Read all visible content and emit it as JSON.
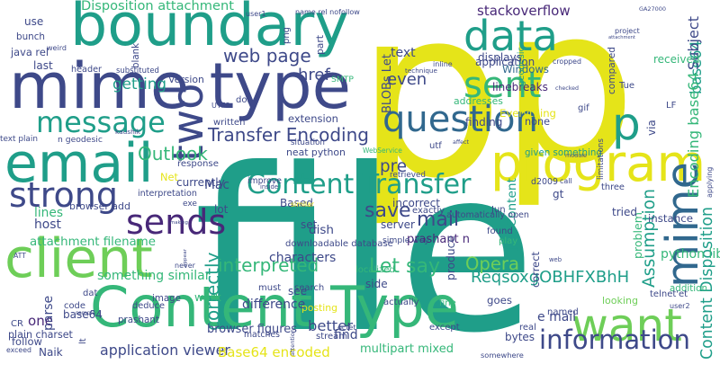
{
  "palette": {
    "background": "#ffffff",
    "yellow": "#e5e419",
    "lightgreen": "#6ece58",
    "green": "#35b779",
    "teal": "#1f9e89",
    "tealblue": "#26828e",
    "blue": "#31688e",
    "indigo": "#3e4989",
    "purple": "#482878",
    "darkpurple": "#440154"
  },
  "words": [
    {
      "text": "p",
      "color": "yellow"
    },
    {
      "text": "p",
      "color": "yellow"
    },
    {
      "text": "file",
      "color": "teal"
    },
    {
      "text": "mime type",
      "color": "indigo"
    },
    {
      "text": "boundary",
      "color": "teal"
    },
    {
      "text": "Content Type",
      "color": "green"
    },
    {
      "text": "email",
      "color": "teal"
    },
    {
      "text": "data",
      "color": "teal"
    },
    {
      "text": "client",
      "color": "lightgreen"
    },
    {
      "text": "program",
      "color": "yellow"
    },
    {
      "text": "question",
      "color": "blue"
    },
    {
      "text": "want",
      "color": "lightgreen"
    },
    {
      "text": "mime",
      "color": "blue"
    },
    {
      "text": "two",
      "color": "indigo"
    },
    {
      "text": "sent",
      "color": "green"
    },
    {
      "text": "message",
      "color": "teal"
    },
    {
      "text": "sends",
      "color": "purple"
    },
    {
      "text": "strong",
      "color": "indigo"
    },
    {
      "text": "Content Transfer",
      "color": "teal"
    },
    {
      "text": "information",
      "color": "indigo"
    },
    {
      "text": "p",
      "color": "teal"
    },
    {
      "text": "Transfer Encoding",
      "color": "indigo"
    },
    {
      "text": "Outlook",
      "color": "green"
    },
    {
      "text": "base64",
      "color": "teal"
    },
    {
      "text": "Encoding base64",
      "color": "green"
    },
    {
      "text": "Content Disposition",
      "color": "teal"
    },
    {
      "text": "interpreted",
      "color": "green"
    },
    {
      "text": "Let say",
      "color": "green"
    },
    {
      "text": "Opera",
      "color": "lightgreen"
    },
    {
      "text": "save",
      "color": "indigo"
    },
    {
      "text": "mail",
      "color": "indigo"
    },
    {
      "text": "correctly",
      "color": "teal"
    },
    {
      "text": "Assumption",
      "color": "teal"
    },
    {
      "text": "web page",
      "color": "indigo"
    },
    {
      "text": "getting",
      "color": "teal"
    },
    {
      "text": "Disposition attachment",
      "color": "green"
    },
    {
      "text": "stackoverflow",
      "color": "purple"
    },
    {
      "text": "even",
      "color": "indigo"
    },
    {
      "text": "attachment filename",
      "color": "green"
    },
    {
      "text": "jpg Content",
      "color": "teal"
    },
    {
      "text": "pre",
      "color": "indigo"
    },
    {
      "text": "href",
      "color": "indigo"
    },
    {
      "text": "Version",
      "color": "indigo"
    },
    {
      "text": "one",
      "color": "purple"
    },
    {
      "text": "better",
      "color": "indigo"
    },
    {
      "text": "application viewer",
      "color": "indigo"
    },
    {
      "text": "Base64 encoded",
      "color": "yellow"
    },
    {
      "text": "ReqsoxgOBHFXBhH",
      "color": "teal"
    },
    {
      "text": "python library",
      "color": "green"
    },
    {
      "text": "e mail",
      "color": "indigo"
    },
    {
      "text": "prashant n",
      "color": "purple"
    },
    {
      "text": "Subject",
      "color": "indigo"
    },
    {
      "text": "dish",
      "color": "indigo"
    },
    {
      "text": "downloadable database",
      "color": "indigo"
    },
    {
      "text": "characters",
      "color": "indigo"
    },
    {
      "text": "something similar",
      "color": "green"
    },
    {
      "text": "browser figures",
      "color": "indigo"
    },
    {
      "text": "multipart mixed",
      "color": "green"
    },
    {
      "text": "text",
      "color": "indigo"
    },
    {
      "text": "Windows",
      "color": "blue"
    },
    {
      "text": "linebreaks",
      "color": "purple"
    },
    {
      "text": "application",
      "color": "indigo"
    },
    {
      "text": "geodesic",
      "color": "teal"
    },
    {
      "text": "Everything",
      "color": "yellow"
    },
    {
      "text": "finding",
      "color": "indigo"
    },
    {
      "text": "addresses",
      "color": "green"
    },
    {
      "text": "compared",
      "color": "indigo"
    },
    {
      "text": "received",
      "color": "green"
    },
    {
      "text": "BLOBs Let",
      "color": "indigo"
    },
    {
      "text": "displays",
      "color": "indigo"
    },
    {
      "text": "extension",
      "color": "indigo"
    },
    {
      "text": "SMTP",
      "color": "green"
    },
    {
      "text": "name rel nofollow",
      "color": "indigo"
    },
    {
      "text": "lines",
      "color": "green"
    },
    {
      "text": "host",
      "color": "indigo"
    },
    {
      "text": "neat python",
      "color": "indigo"
    },
    {
      "text": "given something",
      "color": "teal"
    },
    {
      "text": "text plain",
      "color": "indigo"
    },
    {
      "text": "n geodesic",
      "color": "indigo"
    },
    {
      "text": "browser add",
      "color": "indigo"
    },
    {
      "text": "response",
      "color": "indigo"
    },
    {
      "text": "currently",
      "color": "indigo"
    },
    {
      "text": "interpretation",
      "color": "indigo"
    },
    {
      "text": "incorrect",
      "color": "indigo"
    },
    {
      "text": "automatically open",
      "color": "indigo"
    },
    {
      "text": "server",
      "color": "indigo"
    },
    {
      "text": "simple way",
      "color": "indigo"
    },
    {
      "text": "produce",
      "color": "indigo"
    },
    {
      "text": "posting",
      "color": "yellow"
    },
    {
      "text": "difference",
      "color": "indigo"
    },
    {
      "text": "image",
      "color": "indigo"
    },
    {
      "text": "work",
      "color": "green"
    },
    {
      "text": "prashant",
      "color": "indigo"
    },
    {
      "text": "base64",
      "color": "indigo"
    },
    {
      "text": "plain charset",
      "color": "indigo"
    },
    {
      "text": "follow",
      "color": "indigo"
    },
    {
      "text": "Naik",
      "color": "indigo"
    },
    {
      "text": "parse",
      "color": "indigo"
    },
    {
      "text": "goes",
      "color": "indigo"
    },
    {
      "text": "find",
      "color": "indigo"
    },
    {
      "text": "bytes",
      "color": "indigo"
    },
    {
      "text": "somewhere",
      "color": "indigo"
    },
    {
      "text": "looking",
      "color": "lightgreen"
    },
    {
      "text": "problem",
      "color": "green"
    },
    {
      "text": "instance",
      "color": "indigo"
    },
    {
      "text": "tried",
      "color": "indigo"
    },
    {
      "text": "addition",
      "color": "green"
    },
    {
      "text": "Tue",
      "color": "indigo"
    },
    {
      "text": "via",
      "color": "indigo"
    },
    {
      "text": "use",
      "color": "indigo"
    },
    {
      "text": "bunch",
      "color": "indigo"
    },
    {
      "text": "java rel",
      "color": "indigo"
    },
    {
      "text": "header",
      "color": "indigo"
    },
    {
      "text": "last",
      "color": "indigo"
    },
    {
      "text": "Mac",
      "color": "indigo"
    },
    {
      "text": "Net",
      "color": "yellow"
    },
    {
      "text": "lot",
      "color": "indigo"
    },
    {
      "text": "Based",
      "color": "indigo"
    },
    {
      "text": "set",
      "color": "indigo"
    },
    {
      "text": "see",
      "color": "indigo"
    },
    {
      "text": "side",
      "color": "indigo"
    },
    {
      "text": "exactly",
      "color": "indigo"
    },
    {
      "text": "none",
      "color": "indigo"
    },
    {
      "text": "utf",
      "color": "indigo"
    },
    {
      "text": "affect",
      "color": "indigo"
    },
    {
      "text": "gt",
      "color": "indigo"
    },
    {
      "text": "gif",
      "color": "indigo"
    },
    {
      "text": "Jun",
      "color": "indigo"
    },
    {
      "text": "found",
      "color": "indigo"
    },
    {
      "text": "correct",
      "color": "indigo"
    },
    {
      "text": "fine",
      "color": "green"
    },
    {
      "text": "play",
      "color": "green"
    },
    {
      "text": "except",
      "color": "indigo"
    },
    {
      "text": "actually",
      "color": "indigo"
    },
    {
      "text": "localized",
      "color": "green"
    },
    {
      "text": "telnet'et",
      "color": "indigo"
    },
    {
      "text": "real",
      "color": "indigo"
    },
    {
      "text": "named",
      "color": "indigo"
    },
    {
      "text": "matches",
      "color": "indigo"
    },
    {
      "text": "stream",
      "color": "indigo"
    },
    {
      "text": "code",
      "color": "indigo"
    },
    {
      "text": "deduce",
      "color": "indigo"
    },
    {
      "text": "written",
      "color": "indigo"
    },
    {
      "text": "done",
      "color": "indigo"
    },
    {
      "text": "improve",
      "color": "indigo"
    },
    {
      "text": "search",
      "color": "indigo"
    },
    {
      "text": "must",
      "color": "indigo"
    },
    {
      "text": "substituted",
      "color": "indigo"
    },
    {
      "text": "blank",
      "color": "indigo"
    },
    {
      "text": "part",
      "color": "indigo"
    },
    {
      "text": "png",
      "color": "indigo"
    },
    {
      "text": "inline",
      "color": "indigo"
    },
    {
      "text": "CR",
      "color": "indigo"
    },
    {
      "text": "LF",
      "color": "indigo"
    },
    {
      "text": "exe",
      "color": "indigo"
    },
    {
      "text": "dat",
      "color": "indigo"
    },
    {
      "text": "exceed",
      "color": "indigo"
    },
    {
      "text": "WebService",
      "color": "green"
    },
    {
      "text": "d2009",
      "color": "indigo"
    },
    {
      "text": "three",
      "color": "indigo"
    },
    {
      "text": "situation",
      "color": "indigo"
    },
    {
      "text": "retrieved",
      "color": "indigo"
    },
    {
      "text": "user1",
      "color": "indigo"
    },
    {
      "text": "user2",
      "color": "indigo"
    },
    {
      "text": "checked",
      "color": "indigo"
    },
    {
      "text": "cropped",
      "color": "indigo"
    },
    {
      "text": "limitations",
      "color": "indigo"
    },
    {
      "text": "appear",
      "color": "indigo"
    },
    {
      "text": "never",
      "color": "indigo"
    },
    {
      "text": "inside",
      "color": "indigo"
    },
    {
      "text": "similar",
      "color": "yellow"
    },
    {
      "text": "attention",
      "color": "indigo"
    },
    {
      "text": "technique",
      "color": "indigo"
    },
    {
      "text": "UTF8",
      "color": "indigo"
    },
    {
      "text": "weird",
      "color": "indigo"
    },
    {
      "text": "making",
      "color": "indigo"
    },
    {
      "text": "kaushik",
      "color": "indigo"
    },
    {
      "text": "call",
      "color": "indigo"
    },
    {
      "text": "module",
      "color": "indigo"
    },
    {
      "text": "project",
      "color": "indigo"
    },
    {
      "text": "attachment",
      "color": "indigo"
    },
    {
      "text": "GA27000",
      "color": "indigo"
    },
    {
      "text": "applying",
      "color": "indigo"
    },
    {
      "text": "sample",
      "color": "indigo"
    },
    {
      "text": "ATT",
      "color": "indigo"
    },
    {
      "text": "web",
      "color": "indigo"
    },
    {
      "text": "lt",
      "color": "indigo"
    },
    {
      "text": "octet",
      "color": "indigo"
    },
    {
      "text": "decoding",
      "color": "indigo"
    },
    {
      "text": "test",
      "color": "yellow"
    },
    {
      "text": "m",
      "color": "indigo"
    },
    {
      "text": "n",
      "color": "indigo"
    }
  ]
}
